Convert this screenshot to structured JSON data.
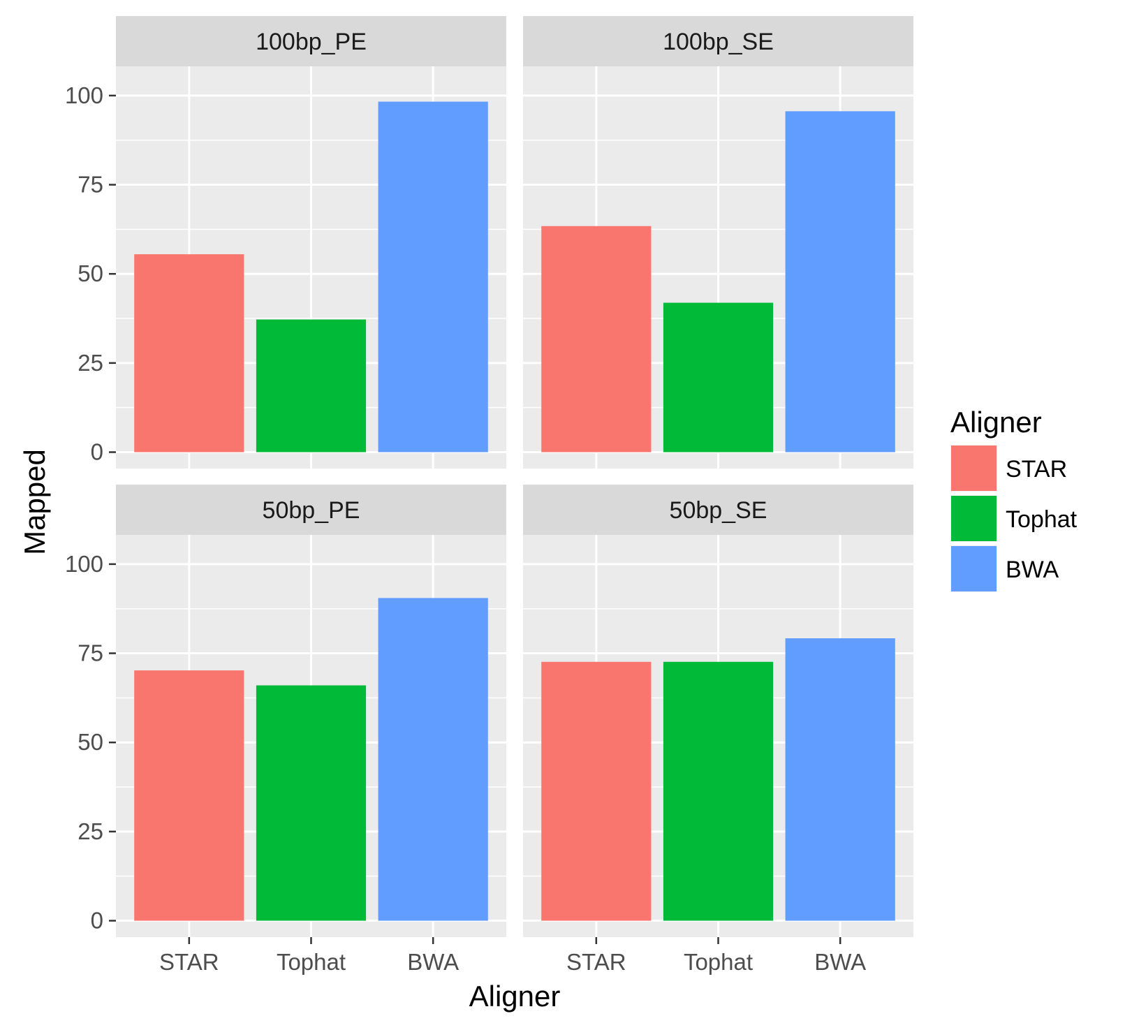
{
  "chart_data": {
    "type": "bar",
    "facet": "wrap",
    "facet_columns": 2,
    "xlabel": "Aligner",
    "ylabel": "Mapped",
    "categories": [
      "STAR",
      "Tophat",
      "BWA"
    ],
    "ylim": [
      0,
      110
    ],
    "yticks": [
      0,
      25,
      50,
      75,
      100
    ],
    "grid": true,
    "legend": {
      "title": "Aligner",
      "position": "right",
      "entries": [
        {
          "label": "STAR",
          "color": "#F8766D"
        },
        {
          "label": "Tophat",
          "color": "#00BA38"
        },
        {
          "label": "BWA",
          "color": "#619CFF"
        }
      ]
    },
    "panels": [
      {
        "name": "100bp_PE",
        "values": [
          55.5,
          37.2,
          98.3
        ]
      },
      {
        "name": "100bp_SE",
        "values": [
          63.4,
          41.9,
          95.6
        ]
      },
      {
        "name": "50bp_PE",
        "values": [
          70.2,
          66.0,
          90.5
        ]
      },
      {
        "name": "50bp_SE",
        "values": [
          72.6,
          72.6,
          79.2
        ]
      }
    ]
  }
}
